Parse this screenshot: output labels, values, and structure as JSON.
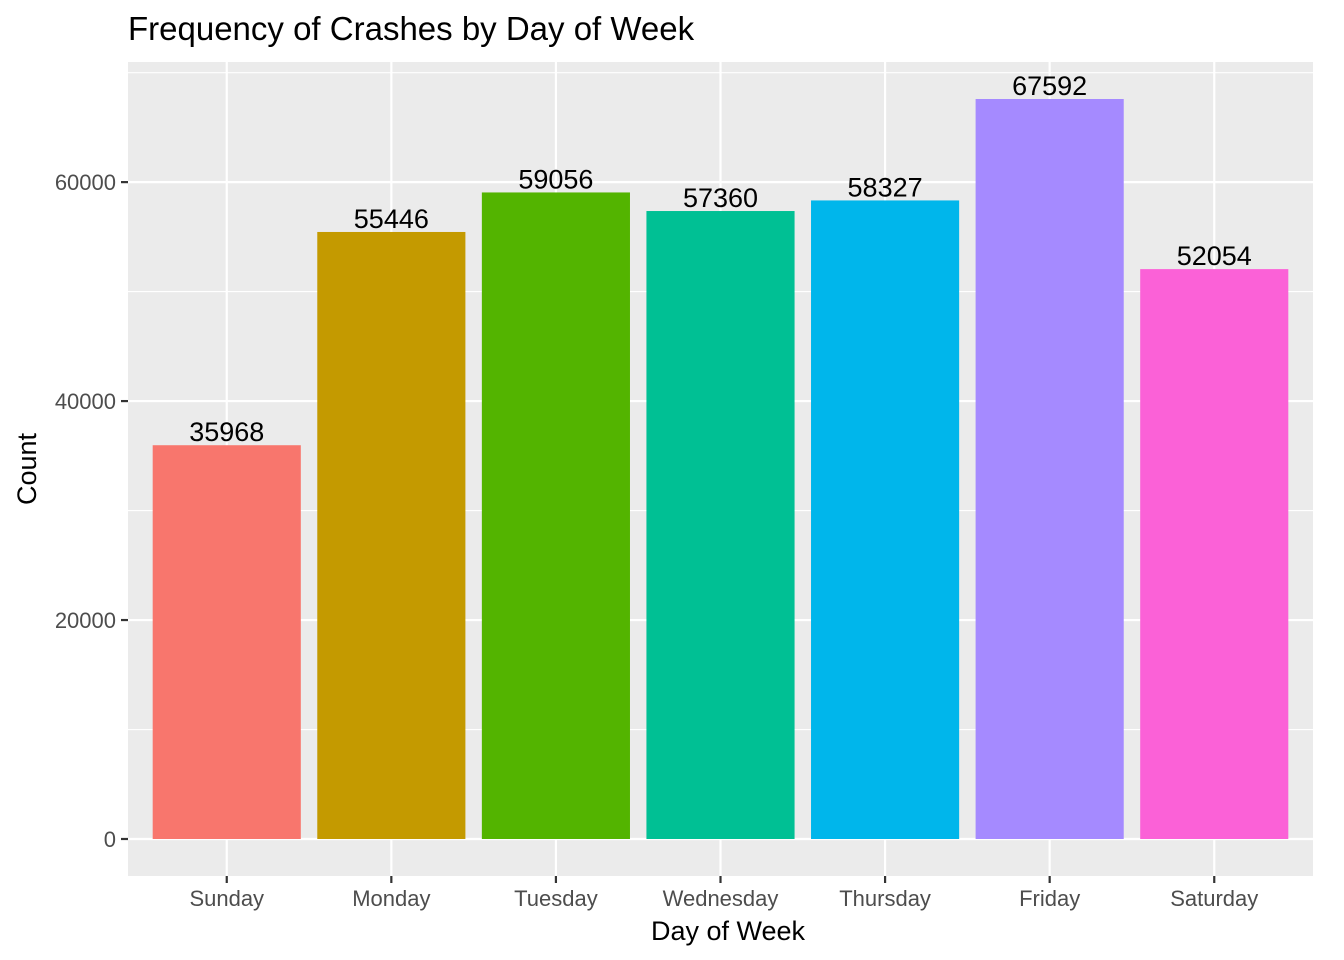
{
  "chart_data": {
    "type": "bar",
    "title": "Frequency of Crashes by Day of Week",
    "xlabel": "Day of Week",
    "ylabel": "Count",
    "categories": [
      "Sunday",
      "Monday",
      "Tuesday",
      "Wednesday",
      "Thursday",
      "Friday",
      "Saturday"
    ],
    "values": [
      35968,
      55446,
      59056,
      57360,
      58327,
      67592,
      52054
    ],
    "value_labels": [
      "35968",
      "55446",
      "59056",
      "57360",
      "58327",
      "67592",
      "52054"
    ],
    "colors": [
      "#F8766D",
      "#C49A00",
      "#53B400",
      "#00C094",
      "#00B6EB",
      "#A58AFF",
      "#FB61D7"
    ],
    "yticks": [
      0,
      20000,
      40000,
      60000
    ],
    "ytick_labels": [
      "0",
      "20000",
      "40000",
      "60000"
    ],
    "ylim": [
      -3380,
      70972
    ],
    "grid": true,
    "legend": "none",
    "panel_background": "#EBEBEB",
    "grid_color": "#FFFFFF"
  }
}
